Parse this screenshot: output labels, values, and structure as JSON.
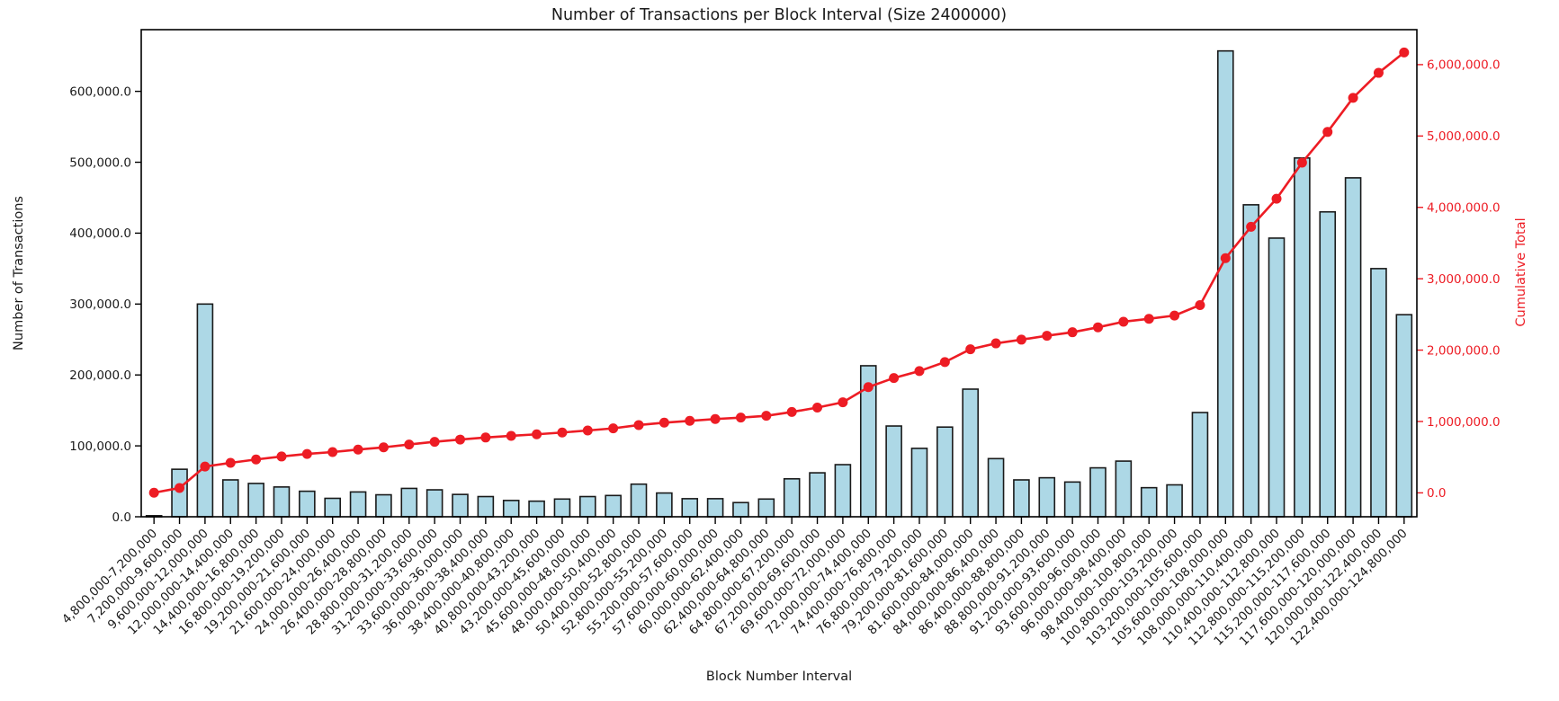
{
  "figure": {
    "title": "Number of Transactions per Block Interval (Size 2400000)",
    "xlabel": "Block Number Interval",
    "ylabel_left": "Number of Transactions",
    "ylabel_right": "Cumulative Total"
  },
  "axes": {
    "left_tick_labels": [
      "0.0",
      "100,000.0",
      "200,000.0",
      "300,000.0",
      "400,000.0",
      "500,000.0",
      "600,000.0"
    ],
    "right_tick_labels": [
      "0.0",
      "1,000,000.0",
      "2,000,000.0",
      "3,000,000.0",
      "4,000,000.0",
      "5,000,000.0",
      "6,000,000.0"
    ]
  },
  "colors": {
    "bar_fill": "#add8e6",
    "bar_edge": "#1a1a1a",
    "line_red": "#ed1c24",
    "text_dark": "#1a1a1a",
    "spine": "#000000"
  },
  "chart_data": {
    "type": "bar",
    "title": "Number of Transactions per Block Interval (Size 2400000)",
    "xlabel": "Block Number Interval",
    "ylabel": "Number of Transactions",
    "ylabel_secondary": "Cumulative Total",
    "grid": false,
    "legend_position": "none",
    "interval_size": 2400000,
    "ylim_left": [
      0,
      687000
    ],
    "ylim_right": [
      -335000,
      6490000
    ],
    "categories": [
      "4,800,000-7,200,000",
      "7,200,000-9,600,000",
      "9,600,000-12,000,000",
      "12,000,000-14,400,000",
      "14,400,000-16,800,000",
      "16,800,000-19,200,000",
      "19,200,000-21,600,000",
      "21,600,000-24,000,000",
      "24,000,000-26,400,000",
      "26,400,000-28,800,000",
      "28,800,000-31,200,000",
      "31,200,000-33,600,000",
      "33,600,000-36,000,000",
      "36,000,000-38,400,000",
      "38,400,000-40,800,000",
      "40,800,000-43,200,000",
      "43,200,000-45,600,000",
      "45,600,000-48,000,000",
      "48,000,000-50,400,000",
      "50,400,000-52,800,000",
      "52,800,000-55,200,000",
      "55,200,000-57,600,000",
      "57,600,000-60,000,000",
      "60,000,000-62,400,000",
      "62,400,000-64,800,000",
      "64,800,000-67,200,000",
      "67,200,000-69,600,000",
      "69,600,000-72,000,000",
      "72,000,000-74,400,000",
      "74,400,000-76,800,000",
      "76,800,000-79,200,000",
      "79,200,000-81,600,000",
      "81,600,000-84,000,000",
      "84,000,000-86,400,000",
      "86,400,000-88,800,000",
      "88,800,000-91,200,000",
      "91,200,000-93,600,000",
      "93,600,000-96,000,000",
      "96,000,000-98,400,000",
      "98,400,000-100,800,000",
      "100,800,000-103,200,000",
      "103,200,000-105,600,000",
      "105,600,000-108,000,000",
      "108,000,000-110,400,000",
      "110,400,000-112,800,000",
      "112,800,000-115,200,000",
      "115,200,000-117,600,000",
      "117,600,000-120,000,000",
      "120,000,000-122,400,000",
      "122,400,000-124,800,000"
    ],
    "series": [
      {
        "name": "Number of Transactions",
        "type": "bar",
        "axis": "left",
        "values": [
          1500,
          67000,
          300000,
          52000,
          47000,
          42000,
          36000,
          26000,
          35000,
          31000,
          40000,
          38000,
          31500,
          28500,
          23000,
          22000,
          25000,
          28500,
          30000,
          46000,
          33500,
          25500,
          25500,
          20000,
          25000,
          53500,
          62000,
          73500,
          213000,
          128000,
          96500,
          126500,
          180000,
          82000,
          52000,
          55000,
          49000,
          69000,
          78500,
          41000,
          45000,
          147000,
          657000,
          440000,
          393000,
          506000,
          430000,
          478000,
          350000,
          285000
        ]
      },
      {
        "name": "Cumulative Total",
        "type": "line",
        "axis": "right",
        "values": [
          1500,
          68500,
          368500,
          420500,
          467500,
          509500,
          545500,
          571500,
          606500,
          637500,
          677500,
          715500,
          747000,
          775500,
          798500,
          820500,
          845500,
          874000,
          904000,
          950000,
          983500,
          1009000,
          1034500,
          1054500,
          1079500,
          1133000,
          1195000,
          1268500,
          1481500,
          1609500,
          1706000,
          1832500,
          2012500,
          2094500,
          2146500,
          2201500,
          2250500,
          2319500,
          2398000,
          2439000,
          2484000,
          2631000,
          3288000,
          3728000,
          4121000,
          4627000,
          5057000,
          5535000,
          5885000,
          6170000
        ]
      }
    ]
  }
}
